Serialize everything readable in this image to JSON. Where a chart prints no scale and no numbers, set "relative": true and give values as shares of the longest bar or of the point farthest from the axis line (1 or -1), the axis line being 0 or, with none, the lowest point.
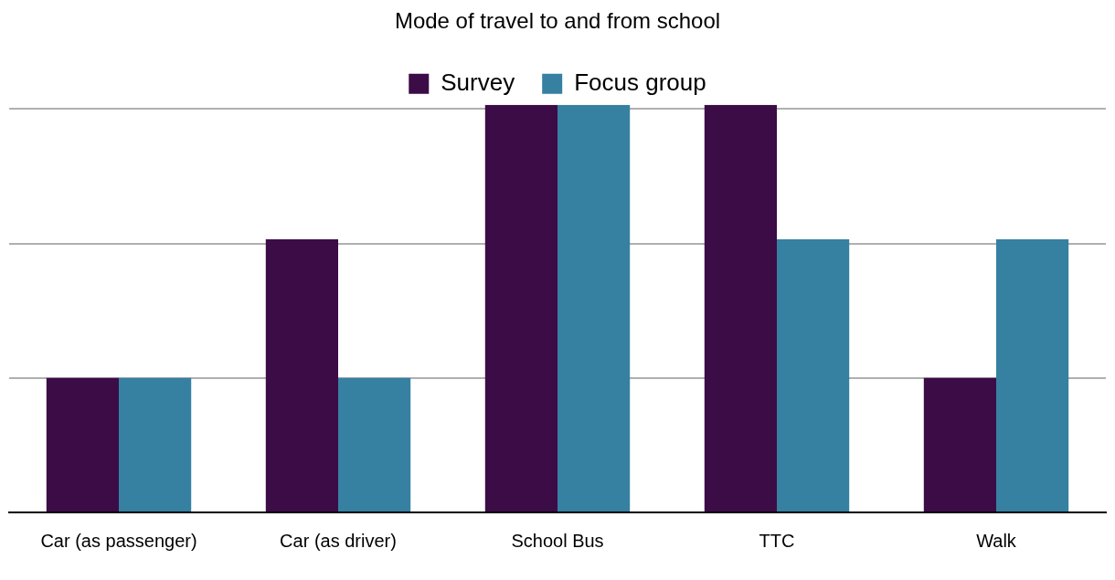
{
  "chart_data": {
    "type": "bar",
    "title": "Mode of travel to and from school",
    "relative": true,
    "grid": "y",
    "legend": "top",
    "categories": [
      "Car (as passenger)",
      "Car (as driver)",
      "School Bus",
      "TTC",
      "Walk"
    ],
    "series": [
      {
        "name": "Survey",
        "color": "#3c0c47",
        "values": [
          0.33,
          0.67,
          1,
          1,
          0.33
        ]
      },
      {
        "name": "Focus group",
        "color": "#3680a1",
        "values": [
          0.33,
          0.33,
          1,
          0.67,
          0.67
        ]
      }
    ]
  }
}
